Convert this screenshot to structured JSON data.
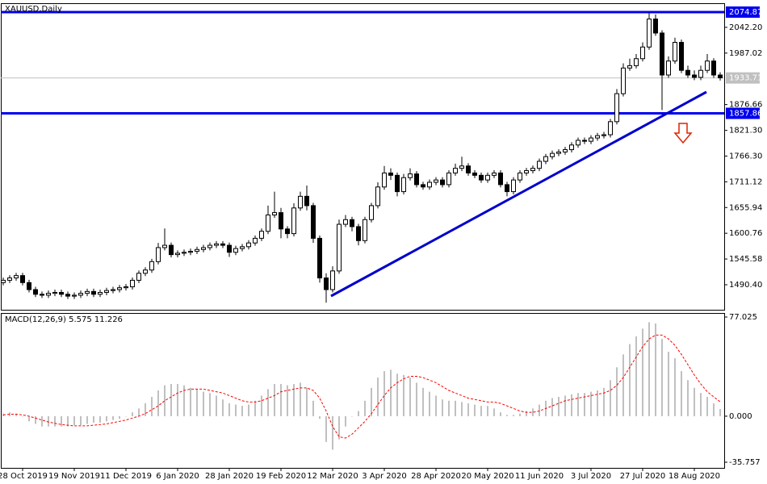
{
  "chart_data": [
    {
      "type": "candlestick",
      "title": "XAUUSD,Daily",
      "categories": [
        null,
        null,
        null,
        "28 Oct 2019",
        null,
        null,
        null,
        null,
        null,
        null,
        null,
        "19 Nov 2019",
        null,
        null,
        null,
        null,
        null,
        null,
        null,
        "11 Dec 2019",
        null,
        null,
        null,
        null,
        null,
        null,
        null,
        "6 Jan 2020",
        null,
        null,
        null,
        null,
        null,
        null,
        null,
        "28 Jan 2020",
        null,
        null,
        null,
        null,
        null,
        null,
        null,
        "19 Feb 2020",
        null,
        null,
        null,
        null,
        null,
        null,
        null,
        "12 Mar 2020",
        null,
        null,
        null,
        null,
        null,
        null,
        null,
        "3 Apr 2020",
        null,
        null,
        null,
        null,
        null,
        null,
        null,
        "28 Apr 2020",
        null,
        null,
        null,
        null,
        null,
        null,
        null,
        "20 May 2020",
        null,
        null,
        null,
        null,
        null,
        null,
        null,
        "11 Jun 2020",
        null,
        null,
        null,
        null,
        null,
        null,
        null,
        "3 Jul 2020",
        null,
        null,
        null,
        null,
        null,
        null,
        null,
        "27 Jul 2020",
        null,
        null,
        null,
        null,
        null,
        null,
        null,
        "18 Aug 2020",
        null,
        null,
        null,
        null
      ],
      "open": [
        1495,
        1500,
        1505,
        1510,
        1495,
        1480,
        1470,
        1468,
        1472,
        1474,
        1470,
        1466,
        1468,
        1472,
        1476,
        1470,
        1474,
        1478,
        1480,
        1484,
        1486,
        1500,
        1515,
        1522,
        1540,
        1570,
        1575,
        1555,
        1558,
        1560,
        1562,
        1566,
        1570,
        1575,
        1578,
        1575,
        1560,
        1568,
        1572,
        1580,
        1590,
        1605,
        1640,
        1645,
        1610,
        1600,
        1655,
        1680,
        1660,
        1590,
        1505,
        1480,
        1520,
        1620,
        1630,
        1615,
        1585,
        1630,
        1660,
        1700,
        1730,
        1725,
        1690,
        1720,
        1728,
        1705,
        1700,
        1710,
        1715,
        1705,
        1730,
        1740,
        1745,
        1730,
        1725,
        1715,
        1725,
        1730,
        1705,
        1690,
        1715,
        1730,
        1735,
        1740,
        1755,
        1765,
        1772,
        1775,
        1780,
        1790,
        1800,
        1798,
        1805,
        1810,
        1812,
        1840,
        1900,
        1955,
        1960,
        1975,
        2000,
        2060,
        2030,
        1940,
        1970,
        2010,
        1950,
        1940,
        1935,
        1950,
        1970,
        1940
      ],
      "high": [
        1506,
        1511,
        1516,
        1516,
        1501,
        1486,
        1476,
        1478,
        1480,
        1480,
        1476,
        1474,
        1478,
        1482,
        1482,
        1480,
        1484,
        1486,
        1490,
        1492,
        1506,
        1521,
        1528,
        1546,
        1580,
        1611,
        1581,
        1564,
        1566,
        1568,
        1572,
        1576,
        1581,
        1584,
        1584,
        1581,
        1574,
        1578,
        1586,
        1596,
        1611,
        1660,
        1690,
        1655,
        1616,
        1665,
        1690,
        1703,
        1666,
        1596,
        1515,
        1530,
        1630,
        1640,
        1636,
        1621,
        1636,
        1666,
        1710,
        1745,
        1740,
        1731,
        1728,
        1740,
        1734,
        1711,
        1716,
        1721,
        1721,
        1736,
        1750,
        1765,
        1751,
        1736,
        1731,
        1731,
        1736,
        1736,
        1711,
        1721,
        1736,
        1741,
        1746,
        1761,
        1771,
        1778,
        1781,
        1786,
        1796,
        1806,
        1806,
        1811,
        1816,
        1818,
        1846,
        1910,
        1965,
        1975,
        1985,
        2010,
        2075,
        2070,
        2036,
        1980,
        2020,
        2016,
        1960,
        1950,
        1960,
        1985,
        1976,
        1946
      ],
      "low": [
        1489,
        1494,
        1499,
        1489,
        1474,
        1464,
        1462,
        1462,
        1466,
        1464,
        1460,
        1460,
        1462,
        1466,
        1464,
        1464,
        1468,
        1472,
        1474,
        1478,
        1480,
        1494,
        1509,
        1516,
        1534,
        1564,
        1549,
        1549,
        1552,
        1554,
        1556,
        1560,
        1564,
        1569,
        1569,
        1550,
        1554,
        1562,
        1566,
        1574,
        1584,
        1599,
        1634,
        1590,
        1590,
        1594,
        1649,
        1650,
        1580,
        1495,
        1452,
        1474,
        1514,
        1614,
        1605,
        1575,
        1579,
        1624,
        1654,
        1694,
        1715,
        1680,
        1684,
        1714,
        1699,
        1694,
        1694,
        1704,
        1699,
        1699,
        1724,
        1734,
        1724,
        1719,
        1709,
        1709,
        1719,
        1699,
        1680,
        1684,
        1709,
        1724,
        1729,
        1734,
        1749,
        1759,
        1766,
        1769,
        1774,
        1784,
        1792,
        1792,
        1799,
        1804,
        1806,
        1834,
        1894,
        1949,
        1954,
        1969,
        1994,
        2024,
        1865,
        1934,
        1964,
        1944,
        1934,
        1929,
        1929,
        1944,
        1934,
        1928
      ],
      "close": [
        1500,
        1505,
        1510,
        1495,
        1480,
        1470,
        1468,
        1472,
        1474,
        1470,
        1466,
        1468,
        1472,
        1476,
        1470,
        1474,
        1478,
        1480,
        1484,
        1486,
        1500,
        1515,
        1522,
        1540,
        1570,
        1575,
        1555,
        1558,
        1560,
        1562,
        1566,
        1570,
        1575,
        1578,
        1575,
        1560,
        1568,
        1572,
        1580,
        1590,
        1605,
        1640,
        1645,
        1610,
        1600,
        1655,
        1680,
        1660,
        1590,
        1505,
        1480,
        1520,
        1620,
        1630,
        1615,
        1585,
        1630,
        1660,
        1700,
        1730,
        1725,
        1690,
        1720,
        1728,
        1705,
        1700,
        1710,
        1715,
        1705,
        1730,
        1740,
        1745,
        1730,
        1725,
        1715,
        1725,
        1730,
        1705,
        1690,
        1715,
        1730,
        1735,
        1740,
        1755,
        1765,
        1772,
        1775,
        1780,
        1790,
        1800,
        1798,
        1805,
        1810,
        1812,
        1840,
        1900,
        1955,
        1960,
        1975,
        2000,
        2060,
        2030,
        1940,
        1970,
        2010,
        1950,
        1940,
        1935,
        1950,
        1970,
        1940,
        1934
      ],
      "ylim": [
        1436.79,
        2093.89
      ],
      "yticks": [
        {
          "value": 2042.2,
          "label": "2042.20"
        },
        {
          "value": 1987.02,
          "label": "1987.02"
        },
        {
          "value": 1876.66,
          "label": "1876.66"
        },
        {
          "value": 1821.3,
          "label": "1821.30"
        },
        {
          "value": 1766.3,
          "label": "1766.30"
        },
        {
          "value": 1711.12,
          "label": "1711.12"
        },
        {
          "value": 1655.94,
          "label": "1655.94"
        },
        {
          "value": 1600.76,
          "label": "1600.76"
        },
        {
          "value": 1545.58,
          "label": "1545.58"
        },
        {
          "value": 1490.4,
          "label": "1490.40"
        }
      ],
      "levels": [
        {
          "value": 2074.87,
          "label": "2074.87"
        },
        {
          "value": 1857.86,
          "label": "1857.86"
        }
      ],
      "level_color": "#0000ee",
      "current_price": {
        "value": 1933.71,
        "label": "1933.71"
      }
    },
    {
      "type": "macd",
      "title": "MACD(12,26,9) 5.575 11.226",
      "series": [
        {
          "name": "MACD",
          "color": "#c0c0c0",
          "values": [
            2,
            3,
            2,
            0,
            -4,
            -6,
            -8,
            -8,
            -8,
            -8,
            -8,
            -7,
            -7,
            -6,
            -5,
            -5,
            -4,
            -3,
            -2,
            0,
            3,
            6,
            10,
            15,
            20,
            24,
            25,
            25,
            24,
            22,
            21,
            19,
            18,
            16,
            13,
            10,
            9,
            8,
            9,
            12,
            16,
            21,
            25,
            25,
            24,
            25,
            26,
            22,
            12,
            -2,
            -20,
            -26,
            -18,
            -8,
            0,
            4,
            12,
            22,
            30,
            35,
            36,
            33,
            32,
            30,
            26,
            22,
            19,
            16,
            13,
            12,
            12,
            11,
            10,
            9,
            8,
            8,
            6,
            3,
            1,
            1,
            2,
            4,
            6,
            9,
            12,
            14,
            15,
            16,
            17,
            18,
            18,
            19,
            20,
            22,
            28,
            38,
            48,
            56,
            62,
            68,
            73,
            72,
            60,
            50,
            45,
            35,
            28,
            22,
            18,
            15,
            10,
            5.575
          ]
        },
        {
          "name": "Signal",
          "color": "#ff0000",
          "values": [
            1,
            1.5,
            1.5,
            1,
            0,
            -1.5,
            -3,
            -4.5,
            -5.5,
            -6.5,
            -7,
            -7.5,
            -7.5,
            -7.5,
            -7,
            -6.5,
            -6,
            -5,
            -4,
            -3,
            -1.5,
            0,
            2,
            5,
            8,
            12,
            15,
            18,
            20,
            21,
            21,
            21,
            20,
            19,
            18,
            16,
            14,
            12,
            11,
            11,
            12,
            14,
            16,
            19,
            20,
            21,
            22,
            22,
            20,
            14,
            4,
            -8,
            -16,
            -17,
            -14,
            -9,
            -4,
            2,
            9,
            16,
            22,
            26,
            29,
            31,
            31,
            30,
            28,
            26,
            23,
            20,
            18,
            16,
            14,
            13,
            12,
            11,
            11,
            10,
            8,
            6,
            4,
            3,
            3,
            4,
            6,
            8,
            10,
            12,
            13,
            14,
            15,
            16,
            17,
            18,
            20,
            24,
            30,
            38,
            46,
            54,
            60,
            63,
            63,
            60,
            55,
            48,
            40,
            32,
            25,
            19,
            15,
            11.226
          ]
        }
      ],
      "ylim": [
        -40.14,
        80.16
      ],
      "yticks": [
        {
          "value": 77.025,
          "label": "77.025"
        },
        {
          "value": 0,
          "label": "0.000"
        },
        {
          "value": -35.757,
          "label": "-35.757"
        }
      ]
    }
  ]
}
